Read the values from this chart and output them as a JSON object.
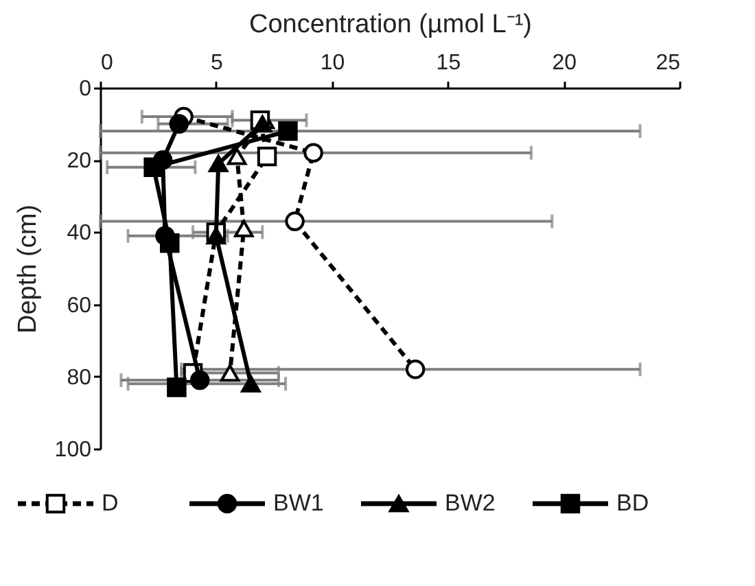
{
  "chart_data": {
    "type": "line",
    "xlabel": "Concentration (µmol L⁻¹)",
    "ylabel": "Depth (cm)",
    "xlim": [
      0,
      25
    ],
    "xticks": [
      0,
      5,
      10,
      15,
      20,
      25
    ],
    "ylim": [
      100,
      0
    ],
    "yticks": [
      0,
      20,
      40,
      60,
      80,
      100
    ],
    "grid": false,
    "legend": "bottom",
    "series": [
      {
        "color": "#000000",
        "marker": "circle",
        "line_style": "dashed",
        "x": [
          3.6,
          9.2,
          8.4,
          13.6
        ],
        "values": [
          8,
          18,
          37,
          78
        ],
        "xerrors": [
          [
            1.8,
            5.7
          ],
          [
            0,
            18.6
          ],
          [
            0,
            19.5
          ],
          [
            3.5,
            23.3
          ]
        ]
      },
      {
        "color": "#000000",
        "marker": "triangle",
        "line_style": "dashed",
        "x": [
          7.1,
          5.9,
          6.2,
          5.6
        ],
        "values": [
          9,
          19,
          39,
          79
        ],
        "xerrors": [
          null,
          null,
          null,
          [
            3.5,
            7.7
          ]
        ]
      },
      {
        "name": "D",
        "color": "#000000",
        "marker": "square",
        "line_style": "dashed",
        "x": [
          6.9,
          7.2,
          5.0,
          4.0
        ],
        "values": [
          9,
          19,
          40,
          79
        ],
        "xerrors": [
          [
            5.7,
            8.9
          ],
          null,
          [
            4.0,
            7.0
          ],
          null
        ]
      },
      {
        "name": "BW1",
        "color": "#000000",
        "marker": "circle",
        "line_style": "solid",
        "x": [
          3.4,
          2.7,
          2.8,
          4.3
        ],
        "values": [
          10,
          20,
          41,
          81
        ],
        "xerrors": [
          [
            2.5,
            5.5
          ],
          null,
          [
            1.2,
            5.5
          ],
          [
            0.9,
            7.7
          ]
        ]
      },
      {
        "name": "BW2",
        "color": "#000000",
        "marker": "triangle",
        "line_style": "solid",
        "x": [
          7.0,
          5.1,
          5.0,
          6.5
        ],
        "values": [
          10,
          21,
          41,
          82
        ],
        "xerrors": [
          null,
          null,
          null,
          [
            1.2,
            8.0
          ]
        ]
      },
      {
        "name": "BD",
        "color": "#000000",
        "marker": "square",
        "line_style": "solid",
        "x": [
          8.1,
          2.3,
          3.0,
          3.3
        ],
        "values": [
          12,
          22,
          43,
          83
        ],
        "xerrors": [
          [
            0,
            23.3
          ],
          [
            0.3,
            4.1
          ],
          null,
          null
        ]
      }
    ]
  }
}
